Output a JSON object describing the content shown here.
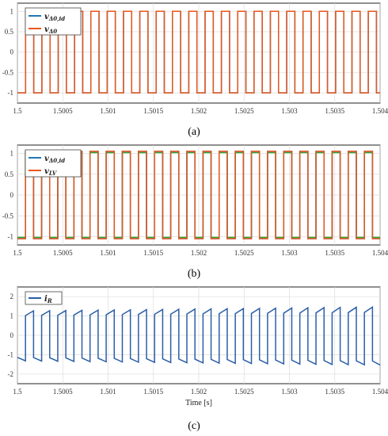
{
  "chart_data": [
    {
      "type": "line",
      "caption": "(a)",
      "xlim": [
        1.5,
        1.504
      ],
      "ylim": [
        -1.25,
        1.2
      ],
      "xticks": [
        "1.5",
        "1.5005",
        "1.501",
        "1.5015",
        "1.502",
        "1.5025",
        "1.503",
        "1.5035",
        "1.504"
      ],
      "yticks": [
        "1",
        "0.5",
        "0",
        "-0.5",
        "-1"
      ],
      "grid": true,
      "legend_position": "top-left",
      "series": [
        {
          "name": "vΔ0,id",
          "color": "#1f77b4",
          "waveform": "square",
          "period": 0.00018,
          "phase": 0.0,
          "amplitude": 1
        },
        {
          "name": "vΔ0",
          "color": "#e8561c",
          "waveform": "square",
          "period": 0.00018,
          "phase": 0.0,
          "amplitude": 1
        }
      ]
    },
    {
      "type": "line",
      "caption": "(b)",
      "xlim": [
        1.5,
        1.504
      ],
      "ylim": [
        -1.2,
        1.2
      ],
      "xticks": [
        "1.5",
        "1.5005",
        "1.501",
        "1.5015",
        "1.502",
        "1.5025",
        "1.503",
        "1.5035",
        "1.504"
      ],
      "yticks": [
        "1",
        "0.5",
        "0",
        "-0.5",
        "-1"
      ],
      "grid": true,
      "legend_position": "top-left",
      "series": [
        {
          "name": "vΔ0,id",
          "color": "#1f77b4",
          "waveform": "square",
          "period": 0.000178,
          "phase": 0.0,
          "amplitude": 1.05
        },
        {
          "name": "vLV",
          "color": "#e8561c",
          "waveform": "square",
          "period": 0.000178,
          "phase": 8e-06,
          "amplitude": 1.05
        },
        {
          "name": "",
          "color": "#2ca02c",
          "waveform": "square",
          "period": 0.000178,
          "phase": 4e-06,
          "amplitude": 1.02
        }
      ]
    },
    {
      "type": "line",
      "caption": "(c)",
      "xlabel": "Time [s]",
      "xlim": [
        1.5,
        1.504
      ],
      "ylim": [
        -2.5,
        2.5
      ],
      "xticks": [
        "1.5",
        "1.5005",
        "1.501",
        "1.5015",
        "1.502",
        "1.5025",
        "1.503",
        "1.5035",
        "1.504"
      ],
      "yticks": [
        "2",
        "1",
        "0",
        "-1",
        "-2"
      ],
      "grid": true,
      "legend_position": "top-left",
      "series": [
        {
          "name": "iR",
          "color": "#2b5ea8",
          "waveform": "ramp",
          "period": 0.000178,
          "amplitude_start": 1.2,
          "amplitude_end": 1.4
        }
      ]
    }
  ],
  "legend_labels": {
    "a1_main": "v",
    "a1_sub": "Δ0,id",
    "a2_main": "v",
    "a2_sub": "Δ0",
    "b1_main": "v",
    "b1_sub": "Δ0,id",
    "b2_main": "v",
    "b2_sub": "LV",
    "c1_main": "i",
    "c1_sub": "R"
  }
}
